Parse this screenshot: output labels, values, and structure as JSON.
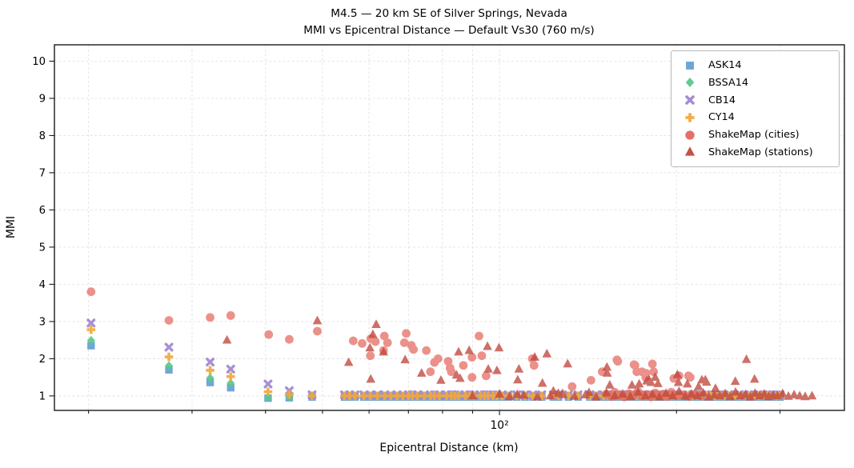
{
  "title": {
    "line1": "M4.5 — 20 km SE of Silver Springs, Nevada",
    "line2": "MMI vs Epicentral Distance — Default Vs30 (760 m/s)"
  },
  "axes": {
    "xlabel": "Epicentral Distance (km)",
    "ylabel": "MMI",
    "x_major_label": "10²"
  },
  "chart_data": {
    "type": "scatter",
    "x_scale": "log",
    "xlim": [
      17.5,
      386
    ],
    "ylim": [
      0.61,
      10.44
    ],
    "y_ticks": [
      1,
      2,
      3,
      4,
      5,
      6,
      7,
      8,
      9,
      10
    ],
    "x_major_ticks": [
      100
    ],
    "x_minor_ticks": [
      20,
      30,
      40,
      50,
      60,
      70,
      80,
      90,
      200,
      300
    ],
    "grid": true,
    "grid_style": "dashed",
    "grid_color": "#cdcdcd",
    "frame_color": "#1a1a1a",
    "legend_position": "upper right",
    "gmm_floor": {
      "distances": [
        48,
        54.5,
        55.6,
        56.8,
        58.8,
        60.3,
        62,
        63.8,
        65.3,
        67,
        68.5,
        70,
        71.1,
        72.5,
        74.5,
        76.3,
        77.5,
        79,
        81.3,
        82.8,
        84,
        85.2,
        87.5,
        89,
        90.4,
        92.8,
        94.3,
        95.7,
        97.5,
        99,
        101,
        103.5,
        107,
        110.5,
        114,
        118,
        123.5,
        126,
        131,
        136,
        142.5,
        146,
        150.4,
        153,
        156,
        159,
        162,
        165,
        168,
        171,
        174,
        177,
        180,
        183,
        186,
        189,
        192,
        195,
        198,
        201,
        205,
        209,
        213,
        217,
        221,
        225,
        229,
        233,
        237,
        241,
        246,
        251,
        256,
        261,
        266,
        271,
        276,
        281,
        286,
        291,
        296,
        300
      ],
      "values": {
        "ASK14": 0.97,
        "BSSA14": 1.0,
        "CB14": 1.03,
        "CY14": 1.0
      }
    },
    "series": [
      {
        "name": "ASK14",
        "marker": "square",
        "color": "#64a0d2",
        "opacity": 0.92,
        "use_floor": true,
        "points": [
          [
            20.2,
            2.35
          ],
          [
            27.4,
            1.7
          ],
          [
            32.2,
            1.36
          ],
          [
            34.9,
            1.22
          ],
          [
            40.4,
            0.94
          ],
          [
            43.9,
            0.95
          ]
        ]
      },
      {
        "name": "BSSA14",
        "marker": "diamond",
        "color": "#5ac88c",
        "opacity": 0.92,
        "use_floor": true,
        "points": [
          [
            20.2,
            2.49
          ],
          [
            27.4,
            1.81
          ],
          [
            32.2,
            1.48
          ],
          [
            34.9,
            1.34
          ],
          [
            40.4,
            0.96
          ],
          [
            43.9,
            0.97
          ]
        ]
      },
      {
        "name": "CB14",
        "marker": "x",
        "color": "#a087d2",
        "opacity": 0.92,
        "use_floor": true,
        "points": [
          [
            20.2,
            2.96
          ],
          [
            27.4,
            2.31
          ],
          [
            32.2,
            1.91
          ],
          [
            34.9,
            1.72
          ],
          [
            40.4,
            1.32
          ],
          [
            43.9,
            1.14
          ]
        ]
      },
      {
        "name": "CY14",
        "marker": "plus",
        "color": "#f2a93c",
        "opacity": 0.92,
        "use_floor": true,
        "points": [
          [
            20.2,
            2.78
          ],
          [
            27.4,
            2.05
          ],
          [
            32.2,
            1.69
          ],
          [
            34.9,
            1.52
          ],
          [
            40.4,
            1.11
          ],
          [
            43.9,
            1.04
          ]
        ]
      },
      {
        "name": "ShakeMap (cities)",
        "marker": "circle",
        "color": "#e4685e",
        "opacity": 0.72,
        "use_floor": false,
        "points": [
          [
            20.2,
            3.8
          ],
          [
            27.4,
            3.03
          ],
          [
            32.2,
            3.11
          ],
          [
            34.9,
            3.16
          ],
          [
            40.5,
            2.65
          ],
          [
            43.9,
            2.52
          ],
          [
            49.0,
            2.74
          ],
          [
            56.4,
            2.48
          ],
          [
            58.4,
            2.41
          ],
          [
            60.3,
            2.08
          ],
          [
            60.4,
            2.54
          ],
          [
            61.5,
            2.46
          ],
          [
            63.5,
            2.22
          ],
          [
            63.7,
            2.61
          ],
          [
            64.5,
            2.43
          ],
          [
            68.9,
            2.43
          ],
          [
            69.4,
            2.68
          ],
          [
            70.8,
            2.36
          ],
          [
            71.4,
            2.25
          ],
          [
            75.1,
            2.22
          ],
          [
            76.3,
            1.65
          ],
          [
            77.5,
            1.9
          ],
          [
            78.6,
            2.0
          ],
          [
            81.8,
            1.93
          ],
          [
            82.4,
            1.75
          ],
          [
            82.8,
            1.65
          ],
          [
            86.8,
            1.82
          ],
          [
            89.8,
            2.04
          ],
          [
            89.8,
            1.5
          ],
          [
            92.3,
            2.61
          ],
          [
            93.3,
            2.08
          ],
          [
            94.9,
            1.54
          ],
          [
            113.7,
            2.0
          ],
          [
            114.5,
            1.82
          ],
          [
            132.9,
            1.25
          ],
          [
            143.1,
            1.42
          ],
          [
            149.5,
            1.65
          ],
          [
            158.4,
            1.97
          ],
          [
            158.9,
            1.93
          ],
          [
            169.4,
            1.84
          ],
          [
            170.0,
            1.82
          ],
          [
            171.2,
            1.65
          ],
          [
            174.7,
            1.65
          ],
          [
            177.3,
            1.5
          ],
          [
            177.5,
            1.61
          ],
          [
            182.0,
            1.86
          ],
          [
            182.9,
            1.65
          ],
          [
            197.9,
            1.47
          ],
          [
            202.0,
            1.54
          ],
          [
            209.6,
            1.54
          ],
          [
            211.0,
            1.5
          ],
          [
            152,
            1.05
          ],
          [
            155,
            0.98
          ],
          [
            157,
            1.1
          ],
          [
            160,
            1.02
          ],
          [
            163,
            0.97
          ],
          [
            166,
            1.06
          ],
          [
            169,
            1.0
          ],
          [
            172,
            1.12
          ],
          [
            175,
            0.99
          ],
          [
            178,
            1.04
          ],
          [
            181,
            0.97
          ],
          [
            184,
            1.08
          ],
          [
            187,
            1.0
          ],
          [
            190,
            1.05
          ],
          [
            193,
            0.98
          ],
          [
            196,
            1.1
          ],
          [
            200,
            1.0
          ],
          [
            205,
            1.03
          ],
          [
            210,
            0.98
          ],
          [
            215,
            1.05
          ],
          [
            220,
            1.0
          ]
        ]
      },
      {
        "name": "ShakeMap (stations)",
        "marker": "triangle",
        "color": "#c0483e",
        "opacity": 0.78,
        "use_floor": false,
        "points": [
          [
            34.4,
            2.5
          ],
          [
            49.0,
            3.02
          ],
          [
            55.4,
            1.9
          ],
          [
            60.2,
            2.29
          ],
          [
            60.4,
            1.45
          ],
          [
            60.9,
            2.65
          ],
          [
            61.7,
            2.92
          ],
          [
            63.5,
            2.18
          ],
          [
            69.1,
            1.97
          ],
          [
            73.7,
            1.61
          ],
          [
            79.5,
            1.42
          ],
          [
            84.5,
            1.56
          ],
          [
            85.2,
            2.18
          ],
          [
            85.7,
            1.47
          ],
          [
            88.8,
            2.22
          ],
          [
            95.4,
            2.33
          ],
          [
            95.7,
            1.72
          ],
          [
            99.0,
            1.68
          ],
          [
            99.8,
            2.29
          ],
          [
            107.2,
            1.04
          ],
          [
            107.4,
            1.43
          ],
          [
            107.9,
            1.72
          ],
          [
            114.8,
            2.04
          ],
          [
            118.3,
            1.34
          ],
          [
            120.4,
            2.13
          ],
          [
            123.5,
            1.13
          ],
          [
            125.9,
            1.07
          ],
          [
            128.2,
            1.04
          ],
          [
            130.6,
            1.86
          ],
          [
            142.0,
            1.09
          ],
          [
            152.3,
            1.77
          ],
          [
            152.5,
            1.61
          ],
          [
            154.0,
            1.29
          ],
          [
            168.0,
            1.29
          ],
          [
            172.8,
            1.32
          ],
          [
            178.0,
            1.4
          ],
          [
            179.5,
            1.43
          ],
          [
            181.0,
            1.36
          ],
          [
            184.0,
            1.5
          ],
          [
            186.0,
            1.33
          ],
          [
            200.7,
            1.57
          ],
          [
            201.5,
            1.36
          ],
          [
            208.7,
            1.32
          ],
          [
            218.0,
            1.25
          ],
          [
            220.9,
            1.43
          ],
          [
            223.9,
            1.43
          ],
          [
            225.0,
            1.37
          ],
          [
            233.0,
            1.2
          ],
          [
            251.8,
            1.39
          ],
          [
            263.0,
            1.98
          ],
          [
            271.5,
            1.45
          ],
          [
            90,
            1.0
          ],
          [
            100,
            1.05
          ],
          [
            104,
            0.98
          ],
          [
            110,
            1.02
          ],
          [
            116,
            0.97
          ],
          [
            122,
            1.0
          ],
          [
            128,
            1.06
          ],
          [
            134,
            0.99
          ],
          [
            140,
            1.03
          ],
          [
            146,
            0.97
          ],
          [
            152,
            1.08
          ],
          [
            157,
            1.0
          ],
          [
            162,
            1.05
          ],
          [
            167,
            0.98
          ],
          [
            172,
            1.1
          ],
          [
            177,
            1.0
          ],
          [
            182,
            1.04
          ],
          [
            187,
            0.97
          ],
          [
            192,
            1.07
          ],
          [
            197,
            1.0
          ],
          [
            202,
            1.12
          ],
          [
            207,
            0.99
          ],
          [
            212,
            1.05
          ],
          [
            217,
            1.0
          ],
          [
            222,
            1.08
          ],
          [
            227,
            0.97
          ],
          [
            232,
            1.03
          ],
          [
            237,
            1.0
          ],
          [
            242,
            1.06
          ],
          [
            247,
            0.98
          ],
          [
            252,
            1.1
          ],
          [
            257,
            1.0
          ],
          [
            262,
            1.04
          ],
          [
            267,
            0.97
          ],
          [
            272,
            1.07
          ],
          [
            277,
            1.0
          ],
          [
            282,
            1.05
          ],
          [
            287,
            0.98
          ],
          [
            292,
            1.02
          ],
          [
            297,
            1.0
          ],
          [
            303,
            1.06
          ],
          [
            310,
            0.99
          ],
          [
            317,
            1.03
          ],
          [
            324,
            1.0
          ],
          [
            331,
            0.98
          ],
          [
            340,
            1.0
          ]
        ]
      }
    ]
  }
}
